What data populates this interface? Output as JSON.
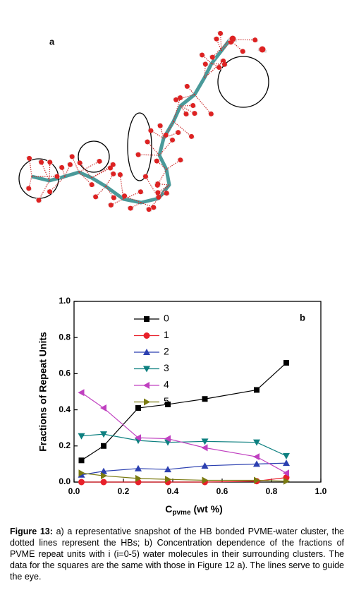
{
  "panel_a": {
    "label": "a"
  },
  "chart_data": {
    "type": "line",
    "panel_label": "b",
    "ylabel": "Fractions of Repeat Units",
    "xlabel": {
      "main": "C",
      "sub": "pvme",
      "unit": "(wt %)"
    },
    "x": [
      0.03,
      0.12,
      0.26,
      0.38,
      0.53,
      0.74,
      0.86
    ],
    "series": [
      {
        "name": "0",
        "color": "#000000",
        "marker": "square",
        "values": [
          0.12,
          0.2,
          0.41,
          0.43,
          0.46,
          0.51,
          0.66
        ]
      },
      {
        "name": "1",
        "color": "#e8202a",
        "marker": "circle",
        "values": [
          0.0,
          0.0,
          0.0,
          0.0,
          0.0,
          0.005,
          0.025
        ]
      },
      {
        "name": "2",
        "color": "#2b3fb0",
        "marker": "triangle-up",
        "values": [
          0.04,
          0.06,
          0.075,
          0.07,
          0.09,
          0.1,
          0.105
        ]
      },
      {
        "name": "3",
        "color": "#0e8080",
        "marker": "triangle-down",
        "values": [
          0.255,
          0.265,
          0.23,
          0.22,
          0.225,
          0.22,
          0.145
        ]
      },
      {
        "name": "4",
        "color": "#c040c0",
        "marker": "triangle-left",
        "values": [
          0.495,
          0.41,
          0.245,
          0.24,
          0.19,
          0.14,
          0.05
        ]
      },
      {
        "name": "5",
        "color": "#7a7a10",
        "marker": "triangle-right",
        "values": [
          0.05,
          0.035,
          0.02,
          0.015,
          0.01,
          0.01,
          0.005
        ]
      }
    ],
    "xlim": [
      0,
      1.0
    ],
    "ylim": [
      0,
      1.0
    ],
    "xticks": [
      {
        "value": 0,
        "label": "0.0"
      },
      {
        "value": 0.2,
        "label": "0.2"
      },
      {
        "value": 0.4,
        "label": "0.4"
      },
      {
        "value": 0.6,
        "label": "0.6"
      },
      {
        "value": 0.8,
        "label": "0.8"
      },
      {
        "value": 1.0,
        "label": "1.0"
      }
    ],
    "yticks": [
      {
        "value": 0,
        "label": "0.0"
      },
      {
        "value": 0.2,
        "label": "0.2"
      },
      {
        "value": 0.4,
        "label": "0.4"
      },
      {
        "value": 0.6,
        "label": "0.6"
      },
      {
        "value": 0.8,
        "label": "0.8"
      },
      {
        "value": 1.0,
        "label": "1.0"
      }
    ],
    "legend": "upper-center"
  },
  "caption": {
    "label": "Figure 13:",
    "text": "a) a representative snapshot of the HB bonded PVME-water cluster, the dotted lines represent the HBs; b) Concentration dependence of the fractions of PVME repeat units with i (i=0-5) water molecules in their surrounding clusters. The data for the squares are the same with those in Figure 12 a). The lines serve to guide the eye."
  }
}
